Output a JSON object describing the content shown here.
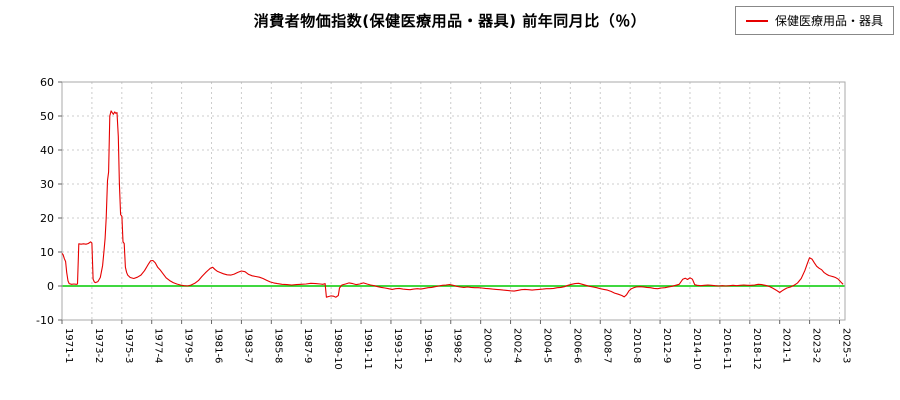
{
  "title": "消費者物価指数(保健医療用品・器具) 前年同月比（％）",
  "legend": {
    "label": "保健医療用品・器具",
    "color": "#e60000"
  },
  "chart_data": {
    "type": "line",
    "title": "消費者物価指数(保健医療用品・器具) 前年同月比（％）",
    "xlabel": "",
    "ylabel": "",
    "ylim": [
      -10,
      60
    ],
    "xlim": [
      1971.0,
      2025.55
    ],
    "yticks": [
      -10,
      0,
      10,
      20,
      30,
      40,
      50,
      60
    ],
    "grid": {
      "color": "#cccccc",
      "dash": "2,3",
      "on": true
    },
    "border_color": "#aaaaaa",
    "background": "#ffffff",
    "zero_line": {
      "value": 0,
      "color": "#00cc00"
    },
    "legend_position": "top-right",
    "xticks": [
      {
        "t": 1971.0,
        "label": "1971-1"
      },
      {
        "t": 1973.083,
        "label": "1973-2"
      },
      {
        "t": 1975.167,
        "label": "1975-3"
      },
      {
        "t": 1977.25,
        "label": "1977-4"
      },
      {
        "t": 1979.333,
        "label": "1979-5"
      },
      {
        "t": 1981.417,
        "label": "1981-6"
      },
      {
        "t": 1983.5,
        "label": "1983-7"
      },
      {
        "t": 1985.583,
        "label": "1985-8"
      },
      {
        "t": 1987.667,
        "label": "1987-9"
      },
      {
        "t": 1989.75,
        "label": "1989-10"
      },
      {
        "t": 1991.833,
        "label": "1991-11"
      },
      {
        "t": 1993.917,
        "label": "1993-12"
      },
      {
        "t": 1996.0,
        "label": "1996-1"
      },
      {
        "t": 1998.083,
        "label": "1998-2"
      },
      {
        "t": 2000.167,
        "label": "2000-3"
      },
      {
        "t": 2002.25,
        "label": "2002-4"
      },
      {
        "t": 2004.333,
        "label": "2004-5"
      },
      {
        "t": 2006.417,
        "label": "2006-6"
      },
      {
        "t": 2008.5,
        "label": "2008-7"
      },
      {
        "t": 2010.583,
        "label": "2010-8"
      },
      {
        "t": 2012.667,
        "label": "2012-9"
      },
      {
        "t": 2014.75,
        "label": "2014-10"
      },
      {
        "t": 2016.833,
        "label": "2016-11"
      },
      {
        "t": 2018.917,
        "label": "2018-12"
      },
      {
        "t": 2021.0,
        "label": "2021-1"
      },
      {
        "t": 2023.083,
        "label": "2023-2"
      },
      {
        "t": 2025.167,
        "label": "2025-3"
      }
    ],
    "series": [
      {
        "name": "保健医療用品・器具",
        "color": "#e60000",
        "points": [
          [
            1971.0,
            9.6
          ],
          [
            1971.08,
            9.2
          ],
          [
            1971.17,
            8.0
          ],
          [
            1971.25,
            7.2
          ],
          [
            1971.33,
            4.0
          ],
          [
            1971.42,
            1.5
          ],
          [
            1971.5,
            0.7
          ],
          [
            1971.67,
            0.5
          ],
          [
            1971.83,
            0.6
          ],
          [
            1972.0,
            0.5
          ],
          [
            1972.08,
            0.6
          ],
          [
            1972.17,
            12.4
          ],
          [
            1972.33,
            12.3
          ],
          [
            1972.5,
            12.4
          ],
          [
            1972.67,
            12.3
          ],
          [
            1972.83,
            12.5
          ],
          [
            1973.0,
            13.0
          ],
          [
            1973.08,
            12.6
          ],
          [
            1973.17,
            2.0
          ],
          [
            1973.25,
            1.2
          ],
          [
            1973.33,
            1.0
          ],
          [
            1973.5,
            1.3
          ],
          [
            1973.67,
            2.5
          ],
          [
            1973.83,
            6.0
          ],
          [
            1973.92,
            10.0
          ],
          [
            1974.0,
            14.0
          ],
          [
            1974.08,
            20.0
          ],
          [
            1974.17,
            31.0
          ],
          [
            1974.25,
            33.5
          ],
          [
            1974.33,
            50.0
          ],
          [
            1974.42,
            51.5
          ],
          [
            1974.5,
            51.0
          ],
          [
            1974.58,
            50.5
          ],
          [
            1974.67,
            51.2
          ],
          [
            1974.75,
            50.8
          ],
          [
            1974.83,
            51.0
          ],
          [
            1974.92,
            44.0
          ],
          [
            1975.0,
            30.0
          ],
          [
            1975.08,
            21.0
          ],
          [
            1975.17,
            20.5
          ],
          [
            1975.25,
            13.0
          ],
          [
            1975.33,
            12.5
          ],
          [
            1975.42,
            5.5
          ],
          [
            1975.5,
            4.0
          ],
          [
            1975.58,
            3.2
          ],
          [
            1975.75,
            2.5
          ],
          [
            1976.0,
            2.2
          ],
          [
            1976.25,
            2.6
          ],
          [
            1976.5,
            3.2
          ],
          [
            1976.75,
            4.5
          ],
          [
            1977.0,
            6.3
          ],
          [
            1977.17,
            7.4
          ],
          [
            1977.33,
            7.5
          ],
          [
            1977.5,
            6.8
          ],
          [
            1977.67,
            5.5
          ],
          [
            1977.83,
            4.8
          ],
          [
            1978.0,
            3.8
          ],
          [
            1978.25,
            2.4
          ],
          [
            1978.5,
            1.6
          ],
          [
            1978.75,
            1.0
          ],
          [
            1979.0,
            0.6
          ],
          [
            1979.25,
            0.3
          ],
          [
            1979.5,
            0.1
          ],
          [
            1979.75,
            0.0
          ],
          [
            1980.0,
            0.3
          ],
          [
            1980.25,
            0.8
          ],
          [
            1980.5,
            1.6
          ],
          [
            1980.75,
            2.8
          ],
          [
            1981.0,
            3.9
          ],
          [
            1981.17,
            4.6
          ],
          [
            1981.33,
            5.2
          ],
          [
            1981.5,
            5.5
          ],
          [
            1981.67,
            4.8
          ],
          [
            1981.83,
            4.3
          ],
          [
            1982.0,
            4.0
          ],
          [
            1982.25,
            3.6
          ],
          [
            1982.5,
            3.3
          ],
          [
            1982.75,
            3.2
          ],
          [
            1983.0,
            3.5
          ],
          [
            1983.25,
            4.0
          ],
          [
            1983.5,
            4.4
          ],
          [
            1983.75,
            4.2
          ],
          [
            1984.0,
            3.4
          ],
          [
            1984.25,
            3.0
          ],
          [
            1984.5,
            2.8
          ],
          [
            1984.75,
            2.6
          ],
          [
            1985.0,
            2.2
          ],
          [
            1985.25,
            1.7
          ],
          [
            1985.5,
            1.2
          ],
          [
            1985.75,
            0.9
          ],
          [
            1986.0,
            0.7
          ],
          [
            1986.33,
            0.5
          ],
          [
            1986.67,
            0.4
          ],
          [
            1987.0,
            0.3
          ],
          [
            1987.33,
            0.4
          ],
          [
            1987.67,
            0.5
          ],
          [
            1988.0,
            0.6
          ],
          [
            1988.33,
            0.8
          ],
          [
            1988.67,
            0.7
          ],
          [
            1989.0,
            0.6
          ],
          [
            1989.17,
            0.5
          ],
          [
            1989.33,
            0.7
          ],
          [
            1989.42,
            -3.3
          ],
          [
            1989.58,
            -3.1
          ],
          [
            1989.75,
            -2.9
          ],
          [
            1989.92,
            -3.0
          ],
          [
            1990.08,
            -3.3
          ],
          [
            1990.25,
            -2.8
          ],
          [
            1990.33,
            -0.6
          ],
          [
            1990.5,
            0.3
          ],
          [
            1990.75,
            0.6
          ],
          [
            1991.0,
            0.9
          ],
          [
            1991.25,
            0.7
          ],
          [
            1991.5,
            0.4
          ],
          [
            1991.75,
            0.6
          ],
          [
            1992.0,
            0.9
          ],
          [
            1992.25,
            0.6
          ],
          [
            1992.5,
            0.3
          ],
          [
            1992.75,
            0.1
          ],
          [
            1993.0,
            -0.2
          ],
          [
            1993.25,
            -0.4
          ],
          [
            1993.5,
            -0.6
          ],
          [
            1993.75,
            -0.8
          ],
          [
            1994.0,
            -1.0
          ],
          [
            1994.25,
            -0.8
          ],
          [
            1994.5,
            -0.7
          ],
          [
            1994.75,
            -0.9
          ],
          [
            1995.0,
            -1.0
          ],
          [
            1995.25,
            -1.1
          ],
          [
            1995.5,
            -0.9
          ],
          [
            1995.75,
            -0.8
          ],
          [
            1996.0,
            -0.9
          ],
          [
            1996.25,
            -0.7
          ],
          [
            1996.5,
            -0.5
          ],
          [
            1996.75,
            -0.4
          ],
          [
            1997.0,
            -0.2
          ],
          [
            1997.25,
            0.0
          ],
          [
            1997.5,
            0.2
          ],
          [
            1997.75,
            0.3
          ],
          [
            1998.0,
            0.4
          ],
          [
            1998.25,
            0.2
          ],
          [
            1998.5,
            -0.1
          ],
          [
            1998.75,
            -0.3
          ],
          [
            1999.0,
            -0.4
          ],
          [
            1999.25,
            -0.3
          ],
          [
            1999.5,
            -0.4
          ],
          [
            1999.75,
            -0.5
          ],
          [
            2000.0,
            -0.5
          ],
          [
            2000.25,
            -0.6
          ],
          [
            2000.5,
            -0.7
          ],
          [
            2000.75,
            -0.8
          ],
          [
            2001.0,
            -0.9
          ],
          [
            2001.25,
            -1.0
          ],
          [
            2001.5,
            -1.1
          ],
          [
            2001.75,
            -1.2
          ],
          [
            2002.0,
            -1.3
          ],
          [
            2002.25,
            -1.4
          ],
          [
            2002.5,
            -1.5
          ],
          [
            2002.75,
            -1.3
          ],
          [
            2003.0,
            -1.1
          ],
          [
            2003.25,
            -1.0
          ],
          [
            2003.5,
            -1.1
          ],
          [
            2003.75,
            -1.2
          ],
          [
            2004.0,
            -1.1
          ],
          [
            2004.25,
            -1.0
          ],
          [
            2004.5,
            -0.9
          ],
          [
            2004.75,
            -0.8
          ],
          [
            2005.0,
            -0.8
          ],
          [
            2005.25,
            -0.7
          ],
          [
            2005.5,
            -0.5
          ],
          [
            2005.75,
            -0.4
          ],
          [
            2006.0,
            -0.2
          ],
          [
            2006.25,
            0.2
          ],
          [
            2006.5,
            0.5
          ],
          [
            2006.75,
            0.7
          ],
          [
            2007.0,
            0.8
          ],
          [
            2007.25,
            0.5
          ],
          [
            2007.5,
            0.2
          ],
          [
            2007.75,
            -0.1
          ],
          [
            2008.0,
            -0.3
          ],
          [
            2008.25,
            -0.5
          ],
          [
            2008.5,
            -0.8
          ],
          [
            2008.75,
            -1.0
          ],
          [
            2009.0,
            -1.2
          ],
          [
            2009.25,
            -1.6
          ],
          [
            2009.5,
            -2.1
          ],
          [
            2009.75,
            -2.4
          ],
          [
            2010.0,
            -2.8
          ],
          [
            2010.17,
            -3.2
          ],
          [
            2010.33,
            -2.6
          ],
          [
            2010.5,
            -1.4
          ],
          [
            2010.67,
            -0.8
          ],
          [
            2010.83,
            -0.5
          ],
          [
            2011.0,
            -0.3
          ],
          [
            2011.25,
            -0.2
          ],
          [
            2011.5,
            -0.3
          ],
          [
            2011.75,
            -0.4
          ],
          [
            2012.0,
            -0.5
          ],
          [
            2012.25,
            -0.7
          ],
          [
            2012.5,
            -0.8
          ],
          [
            2012.75,
            -0.6
          ],
          [
            2013.0,
            -0.5
          ],
          [
            2013.25,
            -0.3
          ],
          [
            2013.5,
            -0.1
          ],
          [
            2013.75,
            0.2
          ],
          [
            2014.0,
            0.5
          ],
          [
            2014.25,
            2.0
          ],
          [
            2014.42,
            2.3
          ],
          [
            2014.58,
            1.9
          ],
          [
            2014.75,
            2.4
          ],
          [
            2014.92,
            2.0
          ],
          [
            2015.08,
            0.4
          ],
          [
            2015.25,
            0.2
          ],
          [
            2015.5,
            0.1
          ],
          [
            2015.75,
            0.2
          ],
          [
            2016.0,
            0.3
          ],
          [
            2016.25,
            0.2
          ],
          [
            2016.5,
            0.1
          ],
          [
            2016.75,
            0.0
          ],
          [
            2017.0,
            0.1
          ],
          [
            2017.25,
            0.0
          ],
          [
            2017.5,
            0.1
          ],
          [
            2017.75,
            0.2
          ],
          [
            2018.0,
            0.1
          ],
          [
            2018.25,
            0.2
          ],
          [
            2018.5,
            0.3
          ],
          [
            2018.75,
            0.2
          ],
          [
            2019.0,
            0.2
          ],
          [
            2019.25,
            0.3
          ],
          [
            2019.5,
            0.5
          ],
          [
            2019.75,
            0.4
          ],
          [
            2020.0,
            0.2
          ],
          [
            2020.25,
            -0.1
          ],
          [
            2020.5,
            -0.6
          ],
          [
            2020.75,
            -1.2
          ],
          [
            2021.0,
            -1.9
          ],
          [
            2021.17,
            -1.4
          ],
          [
            2021.33,
            -1.0
          ],
          [
            2021.5,
            -0.6
          ],
          [
            2021.75,
            -0.3
          ],
          [
            2022.0,
            0.2
          ],
          [
            2022.25,
            0.9
          ],
          [
            2022.5,
            2.2
          ],
          [
            2022.75,
            4.5
          ],
          [
            2022.92,
            6.5
          ],
          [
            2023.08,
            8.3
          ],
          [
            2023.25,
            7.9
          ],
          [
            2023.42,
            6.8
          ],
          [
            2023.58,
            5.8
          ],
          [
            2023.75,
            5.2
          ],
          [
            2023.92,
            4.8
          ],
          [
            2024.08,
            4.0
          ],
          [
            2024.25,
            3.5
          ],
          [
            2024.42,
            3.1
          ],
          [
            2024.58,
            2.9
          ],
          [
            2024.75,
            2.7
          ],
          [
            2024.92,
            2.4
          ],
          [
            2025.08,
            2.0
          ],
          [
            2025.25,
            1.2
          ],
          [
            2025.42,
            0.5
          ]
        ]
      }
    ]
  }
}
